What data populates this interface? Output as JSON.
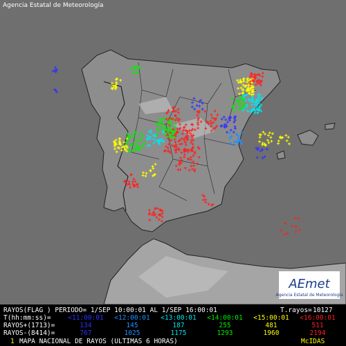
{
  "header": {
    "agency": "Agencia Estatal de Meteorología"
  },
  "legend": {
    "period_line": "RAYOS(FLAG ) PERIODO= 1/SEP 10:00:01 AL  1/SEP 16:00:01",
    "total_label": "T.rayos=",
    "total": 10127,
    "time_label": "T(hh:mm:ss)=",
    "positive_label": "RAYOS+(1713)=",
    "negative_label": "RAYOS-(8414)=",
    "intervals": [
      {
        "label": "<11:00:01",
        "color": "#3030ff",
        "positive": 134,
        "negative": 767
      },
      {
        "label": "<12:00:01",
        "color": "#1e90ff",
        "positive": 145,
        "negative": 1025
      },
      {
        "label": "<13:00:01",
        "color": "#00e5ee",
        "positive": 187,
        "negative": 1175
      },
      {
        "label": "<14:00:01",
        "color": "#00ee00",
        "positive": 255,
        "negative": 1293
      },
      {
        "label": "<15:00:01",
        "color": "#ffff00",
        "positive": 481,
        "negative": 1960
      },
      {
        "label": "<16:00:01",
        "color": "#ff2020",
        "positive": 511,
        "negative": 2194
      }
    ]
  },
  "footer": {
    "index": "1",
    "title": "MAPA NACIONAL DE RAYOS (ULTIMAS 6 HORAS)",
    "system": "McIDAS"
  },
  "logo": {
    "name": "AEmet",
    "agency": "Agencia Estatal de Meteorología"
  }
}
